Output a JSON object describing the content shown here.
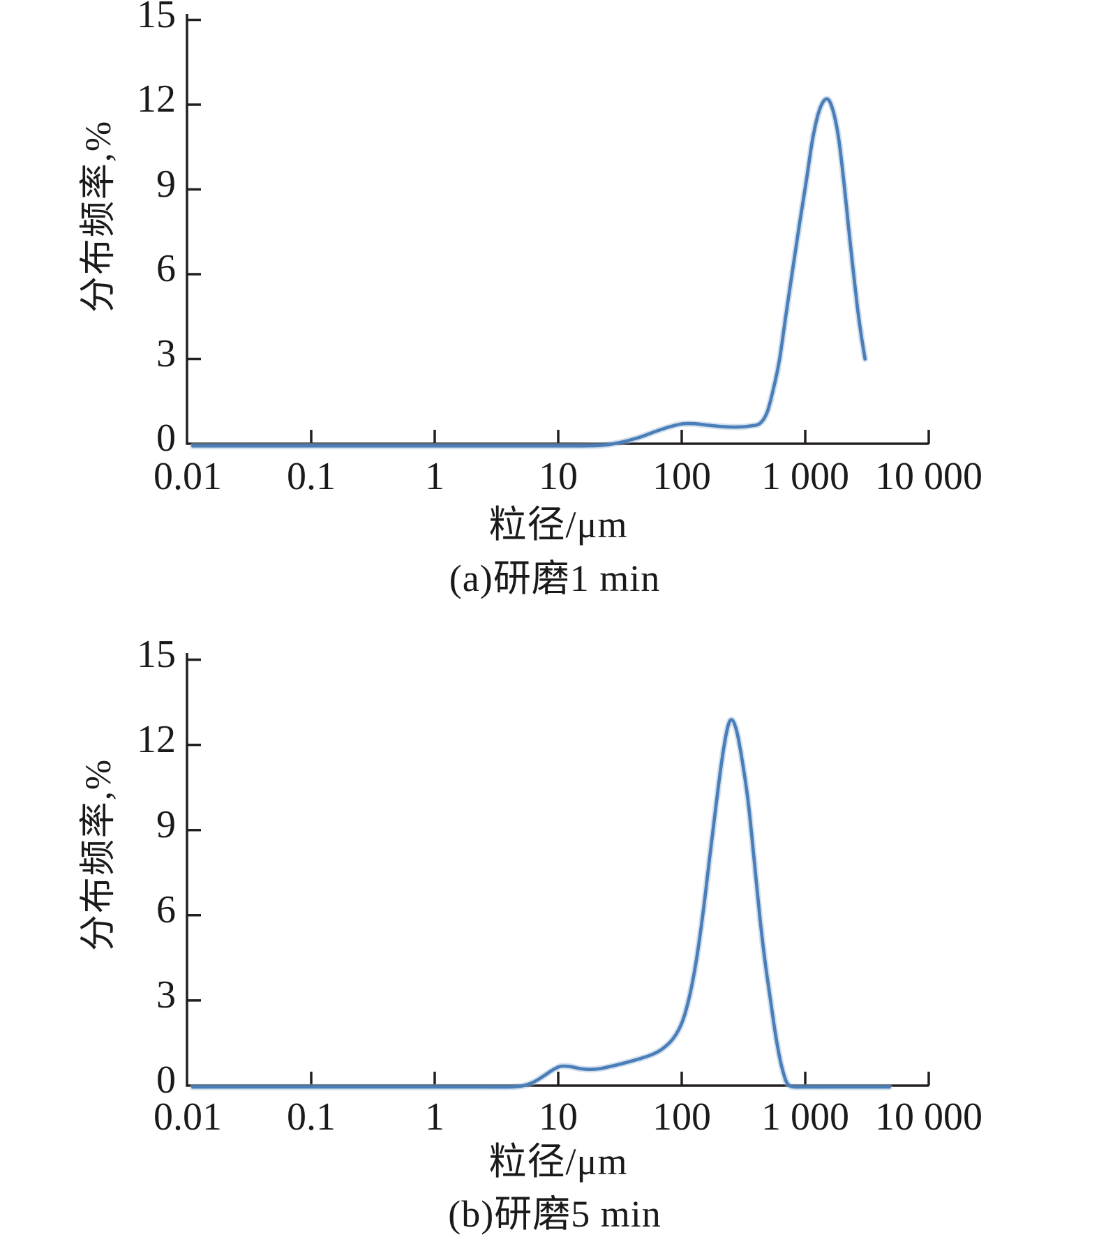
{
  "figure": {
    "background": "#ffffff",
    "text_color": "#1a1a1a",
    "axis_color": "#231f20",
    "curve_color": "#4a7eb8",
    "curve_halo": "#9cb8da"
  },
  "chart_data": [
    {
      "type": "line",
      "panel": "a",
      "caption": "(a)研磨1 min",
      "xlabel": "粒径/μm",
      "ylabel": "分布频率,%",
      "x_scale": "log",
      "xlim": [
        0.01,
        10000
      ],
      "ylim": [
        0,
        15
      ],
      "x_ticks": [
        "0.01",
        "0.1",
        "1",
        "10",
        "100",
        "1 000",
        "10 000"
      ],
      "y_ticks": [
        "0",
        "3",
        "6",
        "9",
        "12",
        "15"
      ],
      "grid": false,
      "legend": "none",
      "series": [
        {
          "name": "研磨1 min",
          "peak": {
            "x_um": 1500,
            "y_pct": 12.2
          },
          "points": [
            [
              0.011,
              -0.08
            ],
            [
              0.05,
              -0.08
            ],
            [
              0.3,
              -0.08
            ],
            [
              1,
              -0.08
            ],
            [
              4,
              -0.08
            ],
            [
              12,
              -0.08
            ],
            [
              22,
              -0.06
            ],
            [
              32,
              0.05
            ],
            [
              45,
              0.22
            ],
            [
              60,
              0.42
            ],
            [
              80,
              0.6
            ],
            [
              100,
              0.7
            ],
            [
              125,
              0.71
            ],
            [
              160,
              0.66
            ],
            [
              210,
              0.61
            ],
            [
              280,
              0.59
            ],
            [
              360,
              0.63
            ],
            [
              430,
              0.72
            ],
            [
              490,
              1.1
            ],
            [
              550,
              1.9
            ],
            [
              620,
              3.0
            ],
            [
              700,
              4.6
            ],
            [
              800,
              6.3
            ],
            [
              900,
              7.8
            ],
            [
              1020,
              9.3
            ],
            [
              1150,
              10.8
            ],
            [
              1300,
              11.8
            ],
            [
              1480,
              12.2
            ],
            [
              1650,
              11.9
            ],
            [
              1850,
              10.9
            ],
            [
              2050,
              9.3
            ],
            [
              2250,
              7.6
            ],
            [
              2450,
              6.1
            ],
            [
              2650,
              4.8
            ],
            [
              2850,
              3.8
            ],
            [
              3050,
              3.0
            ]
          ]
        }
      ]
    },
    {
      "type": "line",
      "panel": "b",
      "caption": "(b)研磨5 min",
      "xlabel": "粒径/μm",
      "ylabel": "分布频率,%",
      "x_scale": "log",
      "xlim": [
        0.01,
        10000
      ],
      "ylim": [
        0,
        15
      ],
      "x_ticks": [
        "0.01",
        "0.1",
        "1",
        "10",
        "100",
        "1 000",
        "10 000"
      ],
      "y_ticks": [
        "0",
        "3",
        "6",
        "9",
        "12",
        "15"
      ],
      "grid": false,
      "legend": "none",
      "series": [
        {
          "name": "研磨5 min",
          "peak": {
            "x_um": 240,
            "y_pct": 12.9
          },
          "points": [
            [
              0.011,
              -0.05
            ],
            [
              0.05,
              -0.05
            ],
            [
              0.3,
              -0.05
            ],
            [
              1,
              -0.05
            ],
            [
              2.5,
              -0.05
            ],
            [
              4.5,
              -0.04
            ],
            [
              6,
              0.08
            ],
            [
              7.5,
              0.32
            ],
            [
              9,
              0.55
            ],
            [
              10.5,
              0.68
            ],
            [
              12.5,
              0.67
            ],
            [
              15,
              0.6
            ],
            [
              18,
              0.57
            ],
            [
              22,
              0.6
            ],
            [
              28,
              0.7
            ],
            [
              36,
              0.82
            ],
            [
              46,
              0.95
            ],
            [
              58,
              1.1
            ],
            [
              70,
              1.3
            ],
            [
              85,
              1.65
            ],
            [
              100,
              2.2
            ],
            [
              115,
              3.1
            ],
            [
              130,
              4.3
            ],
            [
              148,
              6.0
            ],
            [
              168,
              8.0
            ],
            [
              190,
              9.9
            ],
            [
              212,
              11.5
            ],
            [
              235,
              12.6
            ],
            [
              255,
              12.88
            ],
            [
              280,
              12.45
            ],
            [
              310,
              11.4
            ],
            [
              345,
              10.0
            ],
            [
              385,
              8.0
            ],
            [
              430,
              5.9
            ],
            [
              475,
              4.3
            ],
            [
              520,
              3.1
            ],
            [
              570,
              1.9
            ],
            [
              620,
              1.0
            ],
            [
              670,
              0.4
            ],
            [
              715,
              0.08
            ],
            [
              790,
              -0.04
            ],
            [
              1000,
              -0.05
            ],
            [
              1800,
              -0.05
            ],
            [
              3200,
              -0.05
            ],
            [
              4800,
              -0.05
            ]
          ]
        }
      ]
    }
  ]
}
